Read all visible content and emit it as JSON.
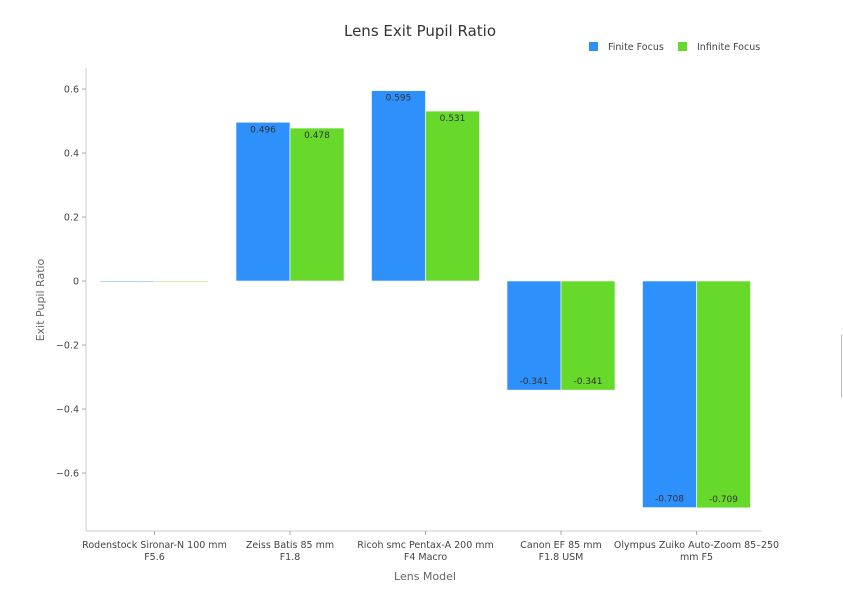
{
  "chart_data": {
    "type": "bar",
    "title": "Lens Exit Pupil Ratio",
    "xlabel": "Lens Model",
    "ylabel": "Exit Pupil Ratio",
    "categories": [
      [
        "Rodenstock Sironar-N 100 mm",
        "F5.6"
      ],
      [
        "Zeiss Batis 85 mm",
        "F1.8"
      ],
      [
        "Ricoh smc Pentax-A 200 mm",
        "F4 Macro"
      ],
      [
        "Canon EF 85 mm",
        "F1.8 USM"
      ],
      [
        "Olympus Zuiko Auto-Zoom 85–250",
        "mm F5"
      ]
    ],
    "series": [
      {
        "name": "Finite Focus",
        "color": "#2e90fa",
        "values": [
          0,
          0.496,
          0.595,
          -0.341,
          -0.708
        ],
        "labels": [
          "",
          "0.496",
          "0.595",
          "-0.341",
          "-0.708"
        ]
      },
      {
        "name": "Infinite Focus",
        "color": "#66d92b",
        "values": [
          0,
          0.478,
          0.531,
          -0.341,
          -0.709
        ],
        "labels": [
          "",
          "0.478",
          "0.531",
          "-0.341",
          "-0.709"
        ]
      }
    ],
    "yticks": [
      0.6,
      0.4,
      0.2,
      0,
      -0.2,
      -0.4,
      -0.6
    ],
    "ytick_labels": [
      "0.6",
      "0.4",
      "0.2",
      "0",
      "−0.2",
      "−0.4",
      "−0.6"
    ],
    "ylim": [
      -0.78,
      0.66
    ],
    "grid": false,
    "legend_position": "top-right"
  }
}
